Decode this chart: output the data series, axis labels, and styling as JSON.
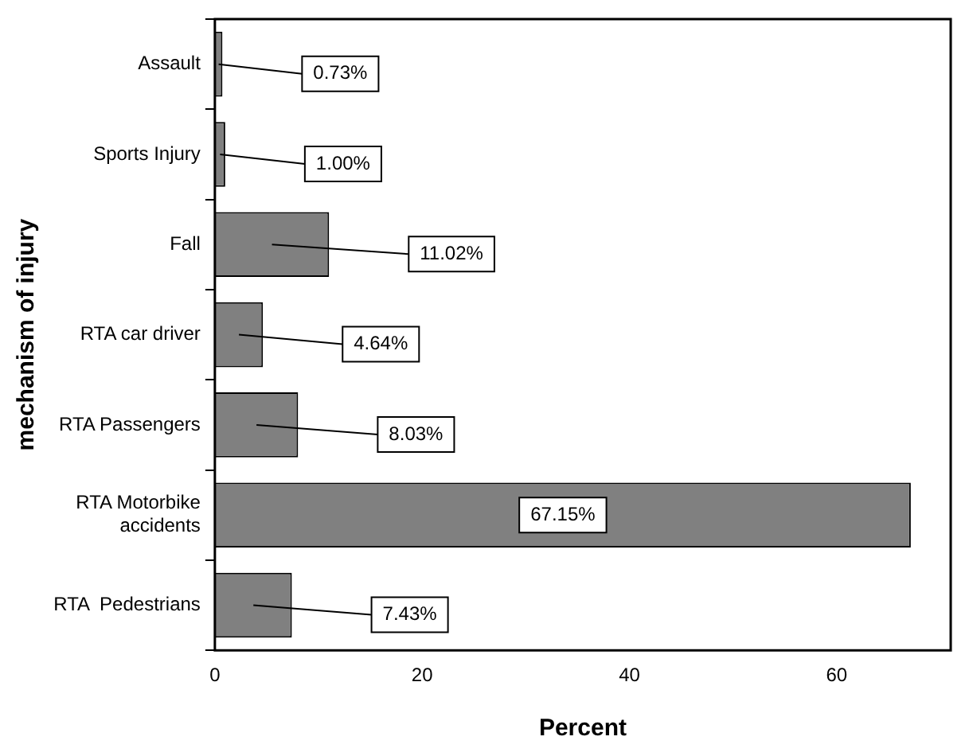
{
  "chart_data": {
    "type": "bar",
    "orientation": "horizontal",
    "xlabel": "Percent",
    "ylabel": "mechanism of injury",
    "categories": [
      "Assault",
      "Sports Injury",
      "Fall",
      "RTA car driver",
      "RTA Passengers",
      "RTA Motorbike accidents",
      "RTA  Pedestrians"
    ],
    "values": [
      0.73,
      1.0,
      11.02,
      4.64,
      8.03,
      67.15,
      7.43
    ],
    "value_labels": [
      "0.73%",
      "1.00%",
      "11.02%",
      "4.64%",
      "8.03%",
      "67.15%",
      "7.43%"
    ],
    "color": "#808080",
    "xlim": [
      0,
      71
    ],
    "xticks": [
      0,
      20,
      40,
      60
    ],
    "grid": false,
    "legend": false
  }
}
